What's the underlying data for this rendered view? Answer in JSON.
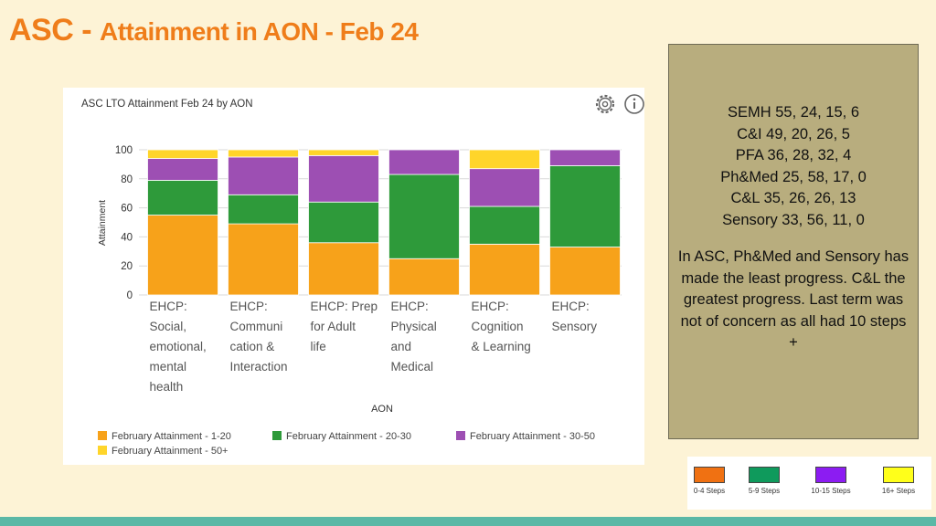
{
  "slide": {
    "title_main": "ASC - ",
    "title_rest": "Attainment in AON - Feb 24"
  },
  "chart_data": {
    "type": "bar",
    "stacked": true,
    "title": "ASC LTO Attainment Feb 24 by AON",
    "xlabel": "AON",
    "ylabel": "Attainment",
    "ylim": [
      0,
      100
    ],
    "yticks": [
      0,
      20,
      40,
      60,
      80,
      100
    ],
    "grid": true,
    "legend_position": "bottom-left",
    "categories": [
      [
        "EHCP:",
        "Social,",
        "emotional,",
        "mental",
        "health"
      ],
      [
        "EHCP:",
        "Communi",
        "cation &",
        "Interaction"
      ],
      [
        "EHCP: Prep",
        "for Adult",
        "life"
      ],
      [
        "EHCP:",
        "Physical",
        "and",
        "Medical"
      ],
      [
        "EHCP:",
        "Cognition",
        "& Learning"
      ],
      [
        "EHCP:",
        "Sensory"
      ]
    ],
    "series": [
      {
        "name": "February Attainment - 1-20",
        "color": "#f7a21a",
        "values": [
          55,
          49,
          36,
          25,
          35,
          33
        ]
      },
      {
        "name": "February Attainment - 20-30",
        "color": "#2e9a3a",
        "values": [
          24,
          20,
          28,
          58,
          26,
          56
        ]
      },
      {
        "name": "February Attainment - 30-50",
        "color": "#9d4fb3",
        "values": [
          15,
          26,
          32,
          17,
          26,
          11
        ]
      },
      {
        "name": "February Attainment - 50+",
        "color": "#ffd52a",
        "values": [
          6,
          5,
          4,
          0,
          13,
          0
        ]
      }
    ]
  },
  "icons": {
    "settings": "gear-icon",
    "info": "info-icon"
  },
  "info_box": {
    "lines": [
      "SEMH 55, 24, 15, 6",
      "C&I 49, 20, 26, 5",
      "PFA 36, 28, 32, 4",
      "Ph&Med 25, 58, 17, 0",
      "C&L 35, 26, 26, 13",
      "Sensory 33, 56, 11, 0"
    ],
    "paragraph": "In ASC, Ph&Med and Sensory has made the least progress. C&L the greatest progress. Last term was not of concern as all had 10 steps +"
  },
  "key": [
    {
      "label": "0-4 Steps",
      "color": "#f07112"
    },
    {
      "label": "5-9 Steps",
      "color": "#0f9a5c"
    },
    {
      "label": "10-15 Steps",
      "color": "#8c1cf2"
    },
    {
      "label": "16+ Steps",
      "color": "#ffff1a"
    }
  ]
}
